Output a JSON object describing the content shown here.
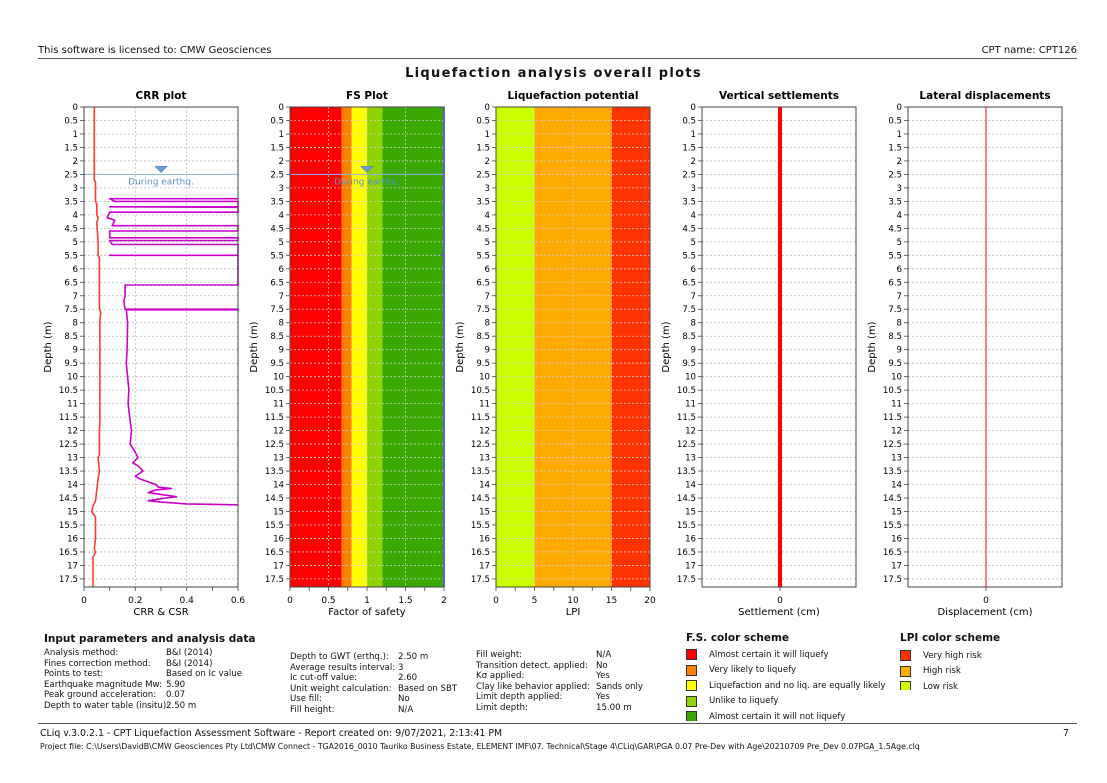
{
  "header": {
    "license_text": "This software is licensed to: CMW Geosciences",
    "cpt_name": "CPT name: CPT126"
  },
  "main_title": "Liquefaction analysis overall plots",
  "chart_data": [
    {
      "type": "line",
      "title": "CRR plot",
      "xlabel": "CRR & CSR",
      "ylabel": "Depth (m)",
      "xlim": [
        0,
        0.6
      ],
      "ylim": [
        0,
        17.8
      ],
      "x_ticks": [
        "0",
        "0.2",
        "0.4",
        "0.6"
      ],
      "y_ticks": [
        "0",
        "0.5",
        "1",
        "1.5",
        "2",
        "2.5",
        "3",
        "3.5",
        "4",
        "4.5",
        "5",
        "5.5",
        "6",
        "6.5",
        "7",
        "7.5",
        "8",
        "8.5",
        "9",
        "9.5",
        "10",
        "10.5",
        "11",
        "11.5",
        "12",
        "12.5",
        "13",
        "13.5",
        "14",
        "14.5",
        "15",
        "15.5",
        "16",
        "16.5",
        "17",
        "17.5"
      ],
      "grid": true,
      "water_table": {
        "depth": 2.5,
        "label": "During earthq."
      },
      "series": [
        {
          "name": "CSR",
          "color": "#ff3b30",
          "points": [
            [
              0.04,
              0
            ],
            [
              0.04,
              2.7
            ],
            [
              0.045,
              2.8
            ],
            [
              0.045,
              3.5
            ],
            [
              0.05,
              3.6
            ],
            [
              0.05,
              4.0
            ],
            [
              0.055,
              4.1
            ],
            [
              0.05,
              4.3
            ],
            [
              0.055,
              5.0
            ],
            [
              0.055,
              5.5
            ],
            [
              0.06,
              5.6
            ],
            [
              0.06,
              7.5
            ],
            [
              0.065,
              7.6
            ],
            [
              0.062,
              7.9
            ],
            [
              0.062,
              11.8
            ],
            [
              0.06,
              11.9
            ],
            [
              0.06,
              12.9
            ],
            [
              0.055,
              13.0
            ],
            [
              0.06,
              13.5
            ],
            [
              0.055,
              13.8
            ],
            [
              0.05,
              14.2
            ],
            [
              0.045,
              14.6
            ],
            [
              0.035,
              14.8
            ],
            [
              0.03,
              15.0
            ],
            [
              0.045,
              15.2
            ],
            [
              0.045,
              16.0
            ],
            [
              0.04,
              16.4
            ],
            [
              0.045,
              16.5
            ],
            [
              0.035,
              16.7
            ],
            [
              0.035,
              17.8
            ]
          ]
        },
        {
          "name": "CRR",
          "color": "#cc00cc",
          "points": [
            [
              0.6,
              3.4
            ],
            [
              0.1,
              3.4
            ],
            [
              0.12,
              3.5
            ],
            [
              0.6,
              3.5
            ],
            [
              0.6,
              3.7
            ],
            [
              0.1,
              3.7
            ],
            [
              0.6,
              3.72
            ],
            [
              0.6,
              3.9
            ],
            [
              0.1,
              3.9
            ],
            [
              0.09,
              4.1
            ],
            [
              0.12,
              4.2
            ],
            [
              0.11,
              4.4
            ],
            [
              0.6,
              4.4
            ],
            [
              0.6,
              4.6
            ],
            [
              0.1,
              4.6
            ],
            [
              0.1,
              4.85
            ],
            [
              0.6,
              4.85
            ],
            [
              0.6,
              4.95
            ],
            [
              0.1,
              4.95
            ],
            [
              0.11,
              5.1
            ],
            [
              0.6,
              5.1
            ],
            [
              0.6,
              5.5
            ],
            [
              0.1,
              5.5
            ],
            [
              0.6,
              5.5
            ],
            [
              0.6,
              6.6
            ],
            [
              0.16,
              6.6
            ],
            [
              0.16,
              7.0
            ],
            [
              0.155,
              7.2
            ],
            [
              0.16,
              7.5
            ],
            [
              0.6,
              7.5
            ],
            [
              0.6,
              7.52
            ],
            [
              0.165,
              7.52
            ],
            [
              0.17,
              8.0
            ],
            [
              0.168,
              9.0
            ],
            [
              0.165,
              9.5
            ],
            [
              0.17,
              10.0
            ],
            [
              0.175,
              10.5
            ],
            [
              0.172,
              11.0
            ],
            [
              0.178,
              11.5
            ],
            [
              0.185,
              12.0
            ],
            [
              0.18,
              12.5
            ],
            [
              0.2,
              12.8
            ],
            [
              0.21,
              13.0
            ],
            [
              0.19,
              13.2
            ],
            [
              0.21,
              13.3
            ],
            [
              0.23,
              13.5
            ],
            [
              0.2,
              13.7
            ],
            [
              0.22,
              13.8
            ],
            [
              0.28,
              14.0
            ],
            [
              0.29,
              14.1
            ],
            [
              0.34,
              14.15
            ],
            [
              0.28,
              14.2
            ],
            [
              0.25,
              14.3
            ],
            [
              0.36,
              14.45
            ],
            [
              0.32,
              14.5
            ],
            [
              0.25,
              14.6
            ],
            [
              0.3,
              14.65
            ],
            [
              0.4,
              14.72
            ],
            [
              0.6,
              14.75
            ]
          ]
        }
      ]
    },
    {
      "type": "area",
      "title": "FS Plot",
      "xlabel": "Factor of safety",
      "ylabel": "Depth (m)",
      "xlim": [
        0,
        2
      ],
      "ylim": [
        0,
        17.8
      ],
      "x_ticks": [
        "0",
        "0.5",
        "1",
        "1.5",
        "2"
      ],
      "grid": true,
      "water_table": {
        "depth": 2.5,
        "label": "During earthq."
      },
      "bands": [
        {
          "from": 0,
          "to": 0.67,
          "color": "#ff0000"
        },
        {
          "from": 0.67,
          "to": 0.8,
          "color": "#ff8000"
        },
        {
          "from": 0.8,
          "to": 1.0,
          "color": "#ffff00"
        },
        {
          "from": 1.0,
          "to": 1.2,
          "color": "#8fd400"
        },
        {
          "from": 1.2,
          "to": 2.0,
          "color": "#3aa800"
        }
      ],
      "series": [
        {
          "name": "FS",
          "color": "#4a55e0",
          "points": [
            [
              2,
              0
            ],
            [
              2,
              5.5
            ],
            [
              1.97,
              5.5
            ],
            [
              2,
              5.5
            ],
            [
              2,
              17.8
            ]
          ]
        }
      ]
    },
    {
      "type": "area",
      "title": "Liquefaction potential",
      "xlabel": "LPI",
      "ylabel": "Depth (m)",
      "xlim": [
        0,
        20
      ],
      "ylim": [
        0,
        17.8
      ],
      "x_ticks": [
        "0",
        "5",
        "10",
        "15",
        "20"
      ],
      "grid": true,
      "bands": [
        {
          "from": 0,
          "to": 5,
          "color": "#ccff00"
        },
        {
          "from": 5,
          "to": 15,
          "color": "#ffaa00"
        },
        {
          "from": 15,
          "to": 20,
          "color": "#ff3300"
        }
      ]
    },
    {
      "type": "line",
      "title": "Vertical settlements",
      "xlabel": "Settlement (cm)",
      "ylabel": "",
      "x_ticks": [
        "0"
      ],
      "ylim": [
        0,
        17.8
      ],
      "grid": true,
      "series": [
        {
          "name": "Settlement",
          "color": "#ff0000",
          "value": 0,
          "weight": "thick"
        }
      ]
    },
    {
      "type": "line",
      "title": "Lateral displacements",
      "xlabel": "Displacement (cm)",
      "ylabel": "",
      "x_ticks": [
        "0"
      ],
      "ylim": [
        0,
        17.8
      ],
      "grid": true,
      "series": [
        {
          "name": "Displacement",
          "color": "#ff6060",
          "value": 0,
          "weight": "thin"
        }
      ]
    }
  ],
  "params": {
    "title": "Input parameters and analysis data",
    "col1": [
      {
        "label": "Analysis method:",
        "value": "B&I (2014)"
      },
      {
        "label": "Fines correction method:",
        "value": "B&I (2014)"
      },
      {
        "label": "Points to test:",
        "value": "Based on Ic value"
      },
      {
        "label": "Earthquake magnitude Mw:",
        "value": "5.90"
      },
      {
        "label": "Peak ground acceleration:",
        "value": "0.07"
      },
      {
        "label": "Depth to water table (insitu):",
        "value": "2.50 m"
      }
    ],
    "col2": [
      {
        "label": "Depth to GWT (erthq.):",
        "value": "2.50 m"
      },
      {
        "label": "Average results interval:",
        "value": "3"
      },
      {
        "label": "Ic cut-off value:",
        "value": "2.60"
      },
      {
        "label": "Unit weight calculation:",
        "value": "Based on SBT"
      },
      {
        "label": "Use fill:",
        "value": "No"
      },
      {
        "label": "Fill height:",
        "value": "N/A"
      }
    ],
    "col3": [
      {
        "label": "Fill weight:",
        "value": "N/A"
      },
      {
        "label": "Transition detect. applied:",
        "value": "No"
      },
      {
        "label": "Kσ applied:",
        "value": "Yes"
      },
      {
        "label": "Clay like behavior applied:",
        "value": "Sands only"
      },
      {
        "label": "Limit depth applied:",
        "value": "Yes"
      },
      {
        "label": "Limit depth:",
        "value": "15.00 m"
      }
    ]
  },
  "fs_scheme": {
    "title": "F.S. color scheme",
    "items": [
      {
        "label": "Almost certain it will liquefy",
        "color": "#ff0000"
      },
      {
        "label": "Very likely to liquefy",
        "color": "#ff8000"
      },
      {
        "label": "Liquefaction and no liq. are equally likely",
        "color": "#ffff00"
      },
      {
        "label": "Unlike to liquefy",
        "color": "#8fd400"
      },
      {
        "label": "Almost certain it will not liquefy",
        "color": "#3aa800"
      }
    ]
  },
  "lpi_scheme": {
    "title": "LPI color scheme",
    "items": [
      {
        "label": "Very high risk",
        "color": "#ff3300"
      },
      {
        "label": "High risk",
        "color": "#ffaa00"
      },
      {
        "label": "Low risk",
        "color": "#ccff00"
      }
    ]
  },
  "footer": {
    "software": "CLiq v.3.0.2.1 - CPT Liquefaction Assessment Software - Report created on: 9/07/2021, 2:13:41 PM",
    "page": "7",
    "project_file": "Project file: C:\\Users\\DavidB\\CMW Geosciences Pty Ltd\\CMW Connect - TGA2016_0010 Tauriko Business Estate, ELEMENT IMF\\07. Technical\\Stage 4\\CLiq\\GAR\\PGA 0.07 Pre-Dev with Age\\20210709 Pre_Dev 0.07PGA_1.5Age.clq"
  }
}
